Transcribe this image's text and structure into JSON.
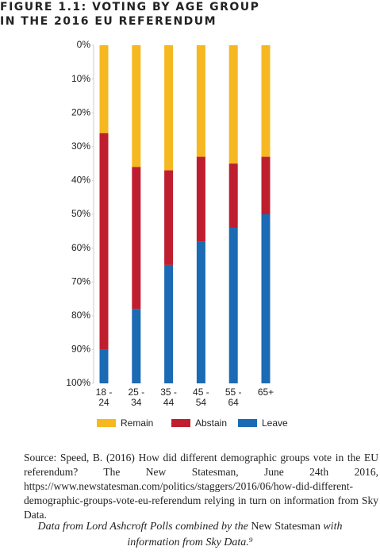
{
  "chart_data": {
    "type": "stacked_bar",
    "title": [
      "FIGURE 1.1: VOTING BY AGE GROUP",
      "IN THE 2016 EU REFERENDUM"
    ],
    "categories": [
      "18 - 24",
      "25 - 34",
      "35 - 44",
      "45 - 54",
      "55 - 64",
      "65+"
    ],
    "series": [
      {
        "name": "Remain",
        "color": "#f6b820",
        "values": [
          26,
          36,
          37,
          33,
          35,
          33
        ]
      },
      {
        "name": "Abstain",
        "color": "#bf1e2e",
        "values": [
          64,
          42,
          28,
          25,
          19,
          17
        ]
      },
      {
        "name": "Leave",
        "color": "#1a6ab4",
        "values": [
          10,
          22,
          35,
          42,
          46,
          50
        ]
      }
    ],
    "ylim": [
      0,
      100
    ],
    "y_inverted": true,
    "yticks": [
      {
        "value": 0,
        "label": "0%"
      },
      {
        "value": 10,
        "label": "10%"
      },
      {
        "value": 20,
        "label": "20%"
      },
      {
        "value": 30,
        "label": "30%"
      },
      {
        "value": 40,
        "label": "40%"
      },
      {
        "value": 50,
        "label": "50%"
      },
      {
        "value": 60,
        "label": "60%"
      },
      {
        "value": 70,
        "label": "70%"
      },
      {
        "value": 80,
        "label": "80%"
      },
      {
        "value": 90,
        "label": "90%"
      },
      {
        "value": 100,
        "label": "100%"
      }
    ],
    "grid": false,
    "legend": "bottom"
  },
  "source": "Source: Speed, B. (2016) How did different demographic groups vote in the EU referendum? The New Statesman, June 24th 2016, https://www.newstatesman.com/politics/staggers/2016/06/how-did-different-demographic-groups-vote-eu-referendum relying in turn on information from Sky Data.",
  "caption": [
    "Data from Lord Ashcroft Polls combined by the ",
    "New Statesman",
    " with information from Sky Data.⁹"
  ]
}
